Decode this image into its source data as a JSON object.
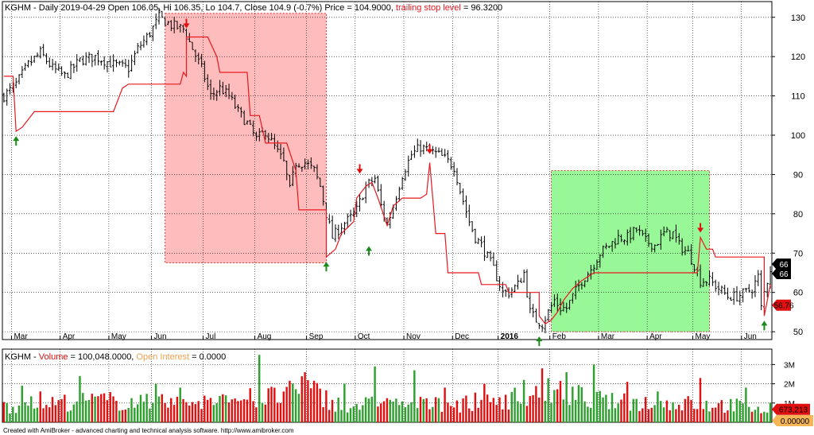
{
  "header": {
    "symbol": "KGHM",
    "line": " - Daily 2019-04-29 Open 106.05, Hi 106.35, Lo 104.7, Close 104.9 (-0.7%) Price = 104.9000, ",
    "stop_label": "trailing stop level",
    "stop_value": " = 96.3200"
  },
  "volume_header": {
    "symbol": "KGHM",
    "sep": " - ",
    "volume_label": "Volume",
    "volume_value": " = 100,048.0000, ",
    "oi_label": "Open Interest",
    "oi_value": " = 0.0000"
  },
  "footer": "Created with AmiBroker - advanced charting and technical analysis software. http://www.amibroker.com",
  "colors": {
    "background": "#ffffff",
    "grid": "#000000",
    "price_bar": "#000000",
    "stop_line": "#e8181f",
    "short_zone": "#ffbcbc",
    "long_zone": "#98f898",
    "vol_up": "#2ea02e",
    "vol_down": "#e01010",
    "up_arrow": "#1a8a1a",
    "down_arrow": "#e01010",
    "oi_label": "#f0a050"
  },
  "chart_data": [
    {
      "type": "candlestick",
      "y_ticks": [
        50,
        60,
        70,
        80,
        90,
        100,
        110,
        120,
        130
      ],
      "ylim": [
        48,
        134
      ],
      "x_months": [
        "Mar",
        "Apr",
        "May",
        "Jun",
        "Jul",
        "Aug",
        "Sep",
        "Oct",
        "Nov",
        "Dec",
        "2016",
        "Feb",
        "Mar",
        "Apr",
        "May",
        "Jun"
      ],
      "price_path": [
        [
          0,
          110
        ],
        [
          4,
          113
        ],
        [
          8,
          118
        ],
        [
          12,
          121
        ],
        [
          16,
          117
        ],
        [
          20,
          115
        ],
        [
          25,
          119
        ],
        [
          30,
          120
        ],
        [
          36,
          118
        ],
        [
          41,
          117
        ],
        [
          44,
          122
        ],
        [
          48,
          126
        ],
        [
          51,
          130
        ],
        [
          55,
          128
        ],
        [
          59,
          127
        ],
        [
          62,
          122
        ],
        [
          65,
          117
        ],
        [
          68,
          110
        ],
        [
          71,
          112
        ],
        [
          74,
          110
        ],
        [
          77,
          106
        ],
        [
          80,
          103
        ],
        [
          83,
          99
        ],
        [
          86,
          101
        ],
        [
          89,
          97
        ],
        [
          92,
          93
        ],
        [
          94,
          86
        ],
        [
          96,
          93
        ],
        [
          99,
          93
        ],
        [
          102,
          91
        ],
        [
          104,
          87
        ],
        [
          106,
          80
        ],
        [
          108,
          74
        ],
        [
          111,
          77
        ],
        [
          114,
          79
        ],
        [
          116,
          81
        ],
        [
          119,
          87
        ],
        [
          122,
          89
        ],
        [
          124,
          82
        ],
        [
          126,
          77
        ],
        [
          128,
          82
        ],
        [
          131,
          90
        ],
        [
          134,
          95
        ],
        [
          137,
          97
        ],
        [
          140,
          96
        ],
        [
          143,
          95
        ],
        [
          145,
          94
        ],
        [
          148,
          92
        ],
        [
          150,
          86
        ],
        [
          153,
          78
        ],
        [
          155,
          74
        ],
        [
          157,
          72
        ],
        [
          159,
          69
        ],
        [
          161,
          66
        ],
        [
          164,
          60
        ],
        [
          166,
          60
        ],
        [
          169,
          62
        ],
        [
          171,
          65
        ],
        [
          173,
          55
        ],
        [
          175,
          53
        ],
        [
          177,
          52
        ],
        [
          179,
          55
        ],
        [
          181,
          58
        ],
        [
          183,
          56
        ],
        [
          185,
          56
        ],
        [
          187,
          59
        ],
        [
          190,
          63
        ],
        [
          193,
          66
        ],
        [
          196,
          70
        ],
        [
          199,
          72
        ],
        [
          202,
          74
        ],
        [
          205,
          74
        ],
        [
          208,
          76
        ],
        [
          211,
          73
        ],
        [
          214,
          72
        ],
        [
          217,
          75
        ],
        [
          220,
          75
        ],
        [
          222,
          72
        ],
        [
          225,
          70
        ],
        [
          227,
          67
        ],
        [
          229,
          63
        ],
        [
          232,
          63
        ],
        [
          235,
          61
        ],
        [
          238,
          59
        ],
        [
          241,
          59
        ],
        [
          244,
          60
        ],
        [
          246,
          61
        ],
        [
          248,
          64
        ],
        [
          249,
          56
        ],
        [
          250,
          60
        ],
        [
          252,
          66
        ]
      ],
      "stop_path": [
        [
          0,
          115
        ],
        [
          3,
          115
        ],
        [
          4,
          101
        ],
        [
          6,
          102
        ],
        [
          8,
          104
        ],
        [
          10,
          106
        ],
        [
          36,
          106
        ],
        [
          39,
          112
        ],
        [
          41,
          113
        ],
        [
          58,
          113
        ],
        [
          59,
          116
        ],
        [
          60,
          115
        ],
        [
          60,
          125
        ],
        [
          67,
          125
        ],
        [
          70,
          120
        ],
        [
          71,
          116
        ],
        [
          80,
          116
        ],
        [
          81,
          105
        ],
        [
          84,
          105
        ],
        [
          86,
          98
        ],
        [
          93,
          98
        ],
        [
          96,
          91
        ],
        [
          97,
          81
        ],
        [
          106,
          81
        ],
        [
          106,
          69
        ],
        [
          109,
          71
        ],
        [
          111,
          75
        ],
        [
          115,
          78
        ],
        [
          116,
          84
        ],
        [
          119,
          87
        ],
        [
          121,
          88
        ],
        [
          123,
          84
        ],
        [
          126,
          77
        ],
        [
          128,
          82
        ],
        [
          131,
          84
        ],
        [
          137,
          84
        ],
        [
          139,
          85
        ],
        [
          140,
          93
        ],
        [
          142,
          75
        ],
        [
          145,
          75
        ],
        [
          146,
          65
        ],
        [
          156,
          65
        ],
        [
          157,
          62
        ],
        [
          165,
          62
        ],
        [
          166,
          60
        ],
        [
          176,
          60
        ],
        [
          176,
          54
        ],
        [
          178,
          52
        ],
        [
          180,
          53
        ],
        [
          182,
          55
        ],
        [
          184,
          58
        ],
        [
          187,
          61
        ],
        [
          190,
          63
        ],
        [
          194,
          65
        ],
        [
          228,
          65
        ],
        [
          229,
          74
        ],
        [
          231,
          71
        ],
        [
          233,
          71
        ],
        [
          234,
          69
        ],
        [
          250,
          69
        ],
        [
          250,
          54
        ],
        [
          251,
          58
        ],
        [
          252,
          62
        ]
      ],
      "up_signals": [
        [
          4,
          101
        ],
        [
          106,
          69
        ],
        [
          120,
          73
        ],
        [
          176,
          50
        ],
        [
          250,
          54
        ]
      ],
      "down_signals": [
        [
          60,
          126
        ],
        [
          117,
          89
        ],
        [
          140,
          94
        ],
        [
          229,
          74
        ]
      ],
      "short_zone": {
        "x": [
          53,
          106
        ],
        "y": [
          67.5,
          131
        ]
      },
      "long_zone": {
        "x": [
          180,
          232
        ],
        "y": [
          50,
          91
        ]
      },
      "price_label": "66",
      "price_label_value": 66,
      "stop_label": "56.76",
      "stop_label_value": 56.76
    },
    {
      "type": "bar",
      "series_name": "Volume",
      "y_ticks_labels": [
        "1M",
        "2M",
        "3M"
      ],
      "y_ticks": [
        1000000,
        2000000,
        3000000
      ],
      "ylim": [
        0,
        3800000
      ],
      "last_volume_label": "673,213",
      "last_volume_value": 673213,
      "oi_label": "0.00000",
      "profile": [
        [
          0,
          0.9
        ],
        [
          10,
          1.0
        ],
        [
          30,
          1.2
        ],
        [
          50,
          1.05
        ],
        [
          70,
          1.15
        ],
        [
          90,
          1.4
        ],
        [
          100,
          1.8
        ],
        [
          110,
          1.0
        ],
        [
          130,
          0.95
        ],
        [
          150,
          1.0
        ],
        [
          170,
          1.4
        ],
        [
          180,
          1.7
        ],
        [
          200,
          1.1
        ],
        [
          230,
          1.0
        ],
        [
          252,
          0.8
        ]
      ],
      "spikes": [
        [
          6,
          1.9
        ],
        [
          12,
          1.6
        ],
        [
          25,
          2.4
        ],
        [
          50,
          2.0
        ],
        [
          58,
          1.8
        ],
        [
          73,
          1.4
        ],
        [
          84,
          3.5
        ],
        [
          99,
          2.6
        ],
        [
          112,
          2.0
        ],
        [
          122,
          2.9
        ],
        [
          135,
          2.7
        ],
        [
          145,
          1.8
        ],
        [
          158,
          2.0
        ],
        [
          171,
          2.2
        ],
        [
          177,
          2.8
        ],
        [
          185,
          2.6
        ],
        [
          194,
          3.0
        ],
        [
          205,
          2.1
        ],
        [
          215,
          1.6
        ],
        [
          229,
          2.3
        ],
        [
          244,
          1.8
        ]
      ]
    }
  ]
}
